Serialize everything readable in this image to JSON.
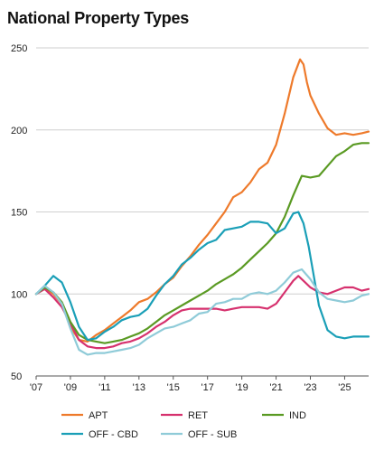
{
  "chart_data": {
    "type": "line",
    "title": "National Property Types",
    "xlabel": "",
    "ylabel": "",
    "ylim": [
      50,
      250
    ],
    "xlim": [
      2007.0,
      2026.4
    ],
    "yticks": [
      50,
      100,
      150,
      200,
      250
    ],
    "xticks": [
      {
        "value": 2007,
        "label": "'07"
      },
      {
        "value": 2009,
        "label": "'09"
      },
      {
        "value": 2011,
        "label": "'11"
      },
      {
        "value": 2013,
        "label": "'13"
      },
      {
        "value": 2015,
        "label": "'15"
      },
      {
        "value": 2017,
        "label": "'17"
      },
      {
        "value": 2019,
        "label": "'19"
      },
      {
        "value": 2021,
        "label": "'21"
      },
      {
        "value": 2023,
        "label": "'23"
      },
      {
        "value": 2025,
        "label": "'25"
      }
    ],
    "grid": "horizontal",
    "legend_position": "bottom",
    "series": [
      {
        "name": "APT",
        "color": "#ee7a2b",
        "points": [
          [
            2007.0,
            100
          ],
          [
            2007.5,
            104
          ],
          [
            2008.0,
            100
          ],
          [
            2008.5,
            94
          ],
          [
            2009.0,
            80
          ],
          [
            2009.5,
            72
          ],
          [
            2010.0,
            71
          ],
          [
            2010.5,
            75
          ],
          [
            2011.0,
            78
          ],
          [
            2011.5,
            82
          ],
          [
            2012.0,
            86
          ],
          [
            2012.5,
            90
          ],
          [
            2013.0,
            95
          ],
          [
            2013.5,
            97
          ],
          [
            2014.0,
            101
          ],
          [
            2014.5,
            106
          ],
          [
            2015.0,
            110
          ],
          [
            2015.5,
            117
          ],
          [
            2016.0,
            123
          ],
          [
            2016.5,
            130
          ],
          [
            2017.0,
            136
          ],
          [
            2017.5,
            143
          ],
          [
            2018.0,
            150
          ],
          [
            2018.5,
            159
          ],
          [
            2019.0,
            162
          ],
          [
            2019.5,
            168
          ],
          [
            2020.0,
            176
          ],
          [
            2020.5,
            180
          ],
          [
            2021.0,
            191
          ],
          [
            2021.5,
            210
          ],
          [
            2022.0,
            232
          ],
          [
            2022.4,
            243
          ],
          [
            2022.6,
            240
          ],
          [
            2022.8,
            229
          ],
          [
            2023.0,
            221
          ],
          [
            2023.5,
            210
          ],
          [
            2024.0,
            201
          ],
          [
            2024.5,
            197
          ],
          [
            2025.0,
            198
          ],
          [
            2025.5,
            197
          ],
          [
            2026.0,
            198
          ],
          [
            2026.4,
            199
          ]
        ]
      },
      {
        "name": "RET",
        "color": "#d6316e",
        "points": [
          [
            2007.0,
            100
          ],
          [
            2007.5,
            103
          ],
          [
            2008.0,
            98
          ],
          [
            2008.5,
            92
          ],
          [
            2009.0,
            82
          ],
          [
            2009.5,
            72
          ],
          [
            2010.0,
            68
          ],
          [
            2010.5,
            67
          ],
          [
            2011.0,
            67
          ],
          [
            2011.5,
            68
          ],
          [
            2012.0,
            70
          ],
          [
            2012.5,
            71
          ],
          [
            2013.0,
            73
          ],
          [
            2013.5,
            76
          ],
          [
            2014.0,
            80
          ],
          [
            2014.5,
            83
          ],
          [
            2015.0,
            87
          ],
          [
            2015.5,
            90
          ],
          [
            2016.0,
            91
          ],
          [
            2016.5,
            91
          ],
          [
            2017.0,
            91
          ],
          [
            2017.5,
            91
          ],
          [
            2018.0,
            90
          ],
          [
            2018.5,
            91
          ],
          [
            2019.0,
            92
          ],
          [
            2019.5,
            92
          ],
          [
            2020.0,
            92
          ],
          [
            2020.5,
            91
          ],
          [
            2021.0,
            94
          ],
          [
            2021.5,
            101
          ],
          [
            2022.0,
            108
          ],
          [
            2022.3,
            111
          ],
          [
            2022.6,
            108
          ],
          [
            2023.0,
            104
          ],
          [
            2023.5,
            101
          ],
          [
            2024.0,
            100
          ],
          [
            2024.5,
            102
          ],
          [
            2025.0,
            104
          ],
          [
            2025.5,
            104
          ],
          [
            2026.0,
            102
          ],
          [
            2026.4,
            103
          ]
        ]
      },
      {
        "name": "IND",
        "color": "#5a9a23",
        "points": [
          [
            2007.0,
            100
          ],
          [
            2007.5,
            104
          ],
          [
            2008.0,
            101
          ],
          [
            2008.5,
            95
          ],
          [
            2009.0,
            83
          ],
          [
            2009.5,
            75
          ],
          [
            2010.0,
            72
          ],
          [
            2010.5,
            71
          ],
          [
            2011.0,
            70
          ],
          [
            2011.5,
            71
          ],
          [
            2012.0,
            72
          ],
          [
            2012.5,
            74
          ],
          [
            2013.0,
            76
          ],
          [
            2013.5,
            79
          ],
          [
            2014.0,
            83
          ],
          [
            2014.5,
            87
          ],
          [
            2015.0,
            90
          ],
          [
            2015.5,
            93
          ],
          [
            2016.0,
            96
          ],
          [
            2016.5,
            99
          ],
          [
            2017.0,
            102
          ],
          [
            2017.5,
            106
          ],
          [
            2018.0,
            109
          ],
          [
            2018.5,
            112
          ],
          [
            2019.0,
            116
          ],
          [
            2019.5,
            121
          ],
          [
            2020.0,
            126
          ],
          [
            2020.5,
            131
          ],
          [
            2021.0,
            137
          ],
          [
            2021.5,
            147
          ],
          [
            2022.0,
            160
          ],
          [
            2022.5,
            172
          ],
          [
            2023.0,
            171
          ],
          [
            2023.5,
            172
          ],
          [
            2024.0,
            178
          ],
          [
            2024.5,
            184
          ],
          [
            2025.0,
            187
          ],
          [
            2025.5,
            191
          ],
          [
            2026.0,
            192
          ],
          [
            2026.4,
            192
          ]
        ]
      },
      {
        "name": "OFF - CBD",
        "color": "#1a9fb7",
        "points": [
          [
            2007.0,
            100
          ],
          [
            2007.5,
            105
          ],
          [
            2008.0,
            111
          ],
          [
            2008.5,
            107
          ],
          [
            2009.0,
            95
          ],
          [
            2009.5,
            80
          ],
          [
            2010.0,
            72
          ],
          [
            2010.5,
            73
          ],
          [
            2011.0,
            77
          ],
          [
            2011.5,
            80
          ],
          [
            2012.0,
            84
          ],
          [
            2012.5,
            86
          ],
          [
            2013.0,
            87
          ],
          [
            2013.5,
            91
          ],
          [
            2014.0,
            99
          ],
          [
            2014.5,
            106
          ],
          [
            2015.0,
            111
          ],
          [
            2015.5,
            118
          ],
          [
            2016.0,
            122
          ],
          [
            2016.5,
            127
          ],
          [
            2017.0,
            131
          ],
          [
            2017.5,
            133
          ],
          [
            2018.0,
            139
          ],
          [
            2018.5,
            140
          ],
          [
            2019.0,
            141
          ],
          [
            2019.5,
            144
          ],
          [
            2020.0,
            144
          ],
          [
            2020.5,
            143
          ],
          [
            2021.0,
            137
          ],
          [
            2021.5,
            140
          ],
          [
            2022.0,
            149
          ],
          [
            2022.3,
            150
          ],
          [
            2022.6,
            143
          ],
          [
            2022.9,
            129
          ],
          [
            2023.2,
            111
          ],
          [
            2023.5,
            93
          ],
          [
            2024.0,
            78
          ],
          [
            2024.5,
            74
          ],
          [
            2025.0,
            73
          ],
          [
            2025.5,
            74
          ],
          [
            2026.0,
            74
          ],
          [
            2026.4,
            74
          ]
        ]
      },
      {
        "name": "OFF - SUB",
        "color": "#8fcbd8",
        "points": [
          [
            2007.0,
            100
          ],
          [
            2007.5,
            105
          ],
          [
            2008.0,
            101
          ],
          [
            2008.5,
            94
          ],
          [
            2009.0,
            79
          ],
          [
            2009.5,
            66
          ],
          [
            2010.0,
            63
          ],
          [
            2010.5,
            64
          ],
          [
            2011.0,
            64
          ],
          [
            2011.5,
            65
          ],
          [
            2012.0,
            66
          ],
          [
            2012.5,
            67
          ],
          [
            2013.0,
            69
          ],
          [
            2013.5,
            73
          ],
          [
            2014.0,
            76
          ],
          [
            2014.5,
            79
          ],
          [
            2015.0,
            80
          ],
          [
            2015.5,
            82
          ],
          [
            2016.0,
            84
          ],
          [
            2016.5,
            88
          ],
          [
            2017.0,
            89
          ],
          [
            2017.5,
            94
          ],
          [
            2018.0,
            95
          ],
          [
            2018.5,
            97
          ],
          [
            2019.0,
            97
          ],
          [
            2019.5,
            100
          ],
          [
            2020.0,
            101
          ],
          [
            2020.5,
            100
          ],
          [
            2021.0,
            102
          ],
          [
            2021.5,
            107
          ],
          [
            2022.0,
            113
          ],
          [
            2022.5,
            115
          ],
          [
            2023.0,
            109
          ],
          [
            2023.5,
            101
          ],
          [
            2024.0,
            97
          ],
          [
            2024.5,
            96
          ],
          [
            2025.0,
            95
          ],
          [
            2025.5,
            96
          ],
          [
            2026.0,
            99
          ],
          [
            2026.4,
            100
          ]
        ]
      }
    ]
  }
}
